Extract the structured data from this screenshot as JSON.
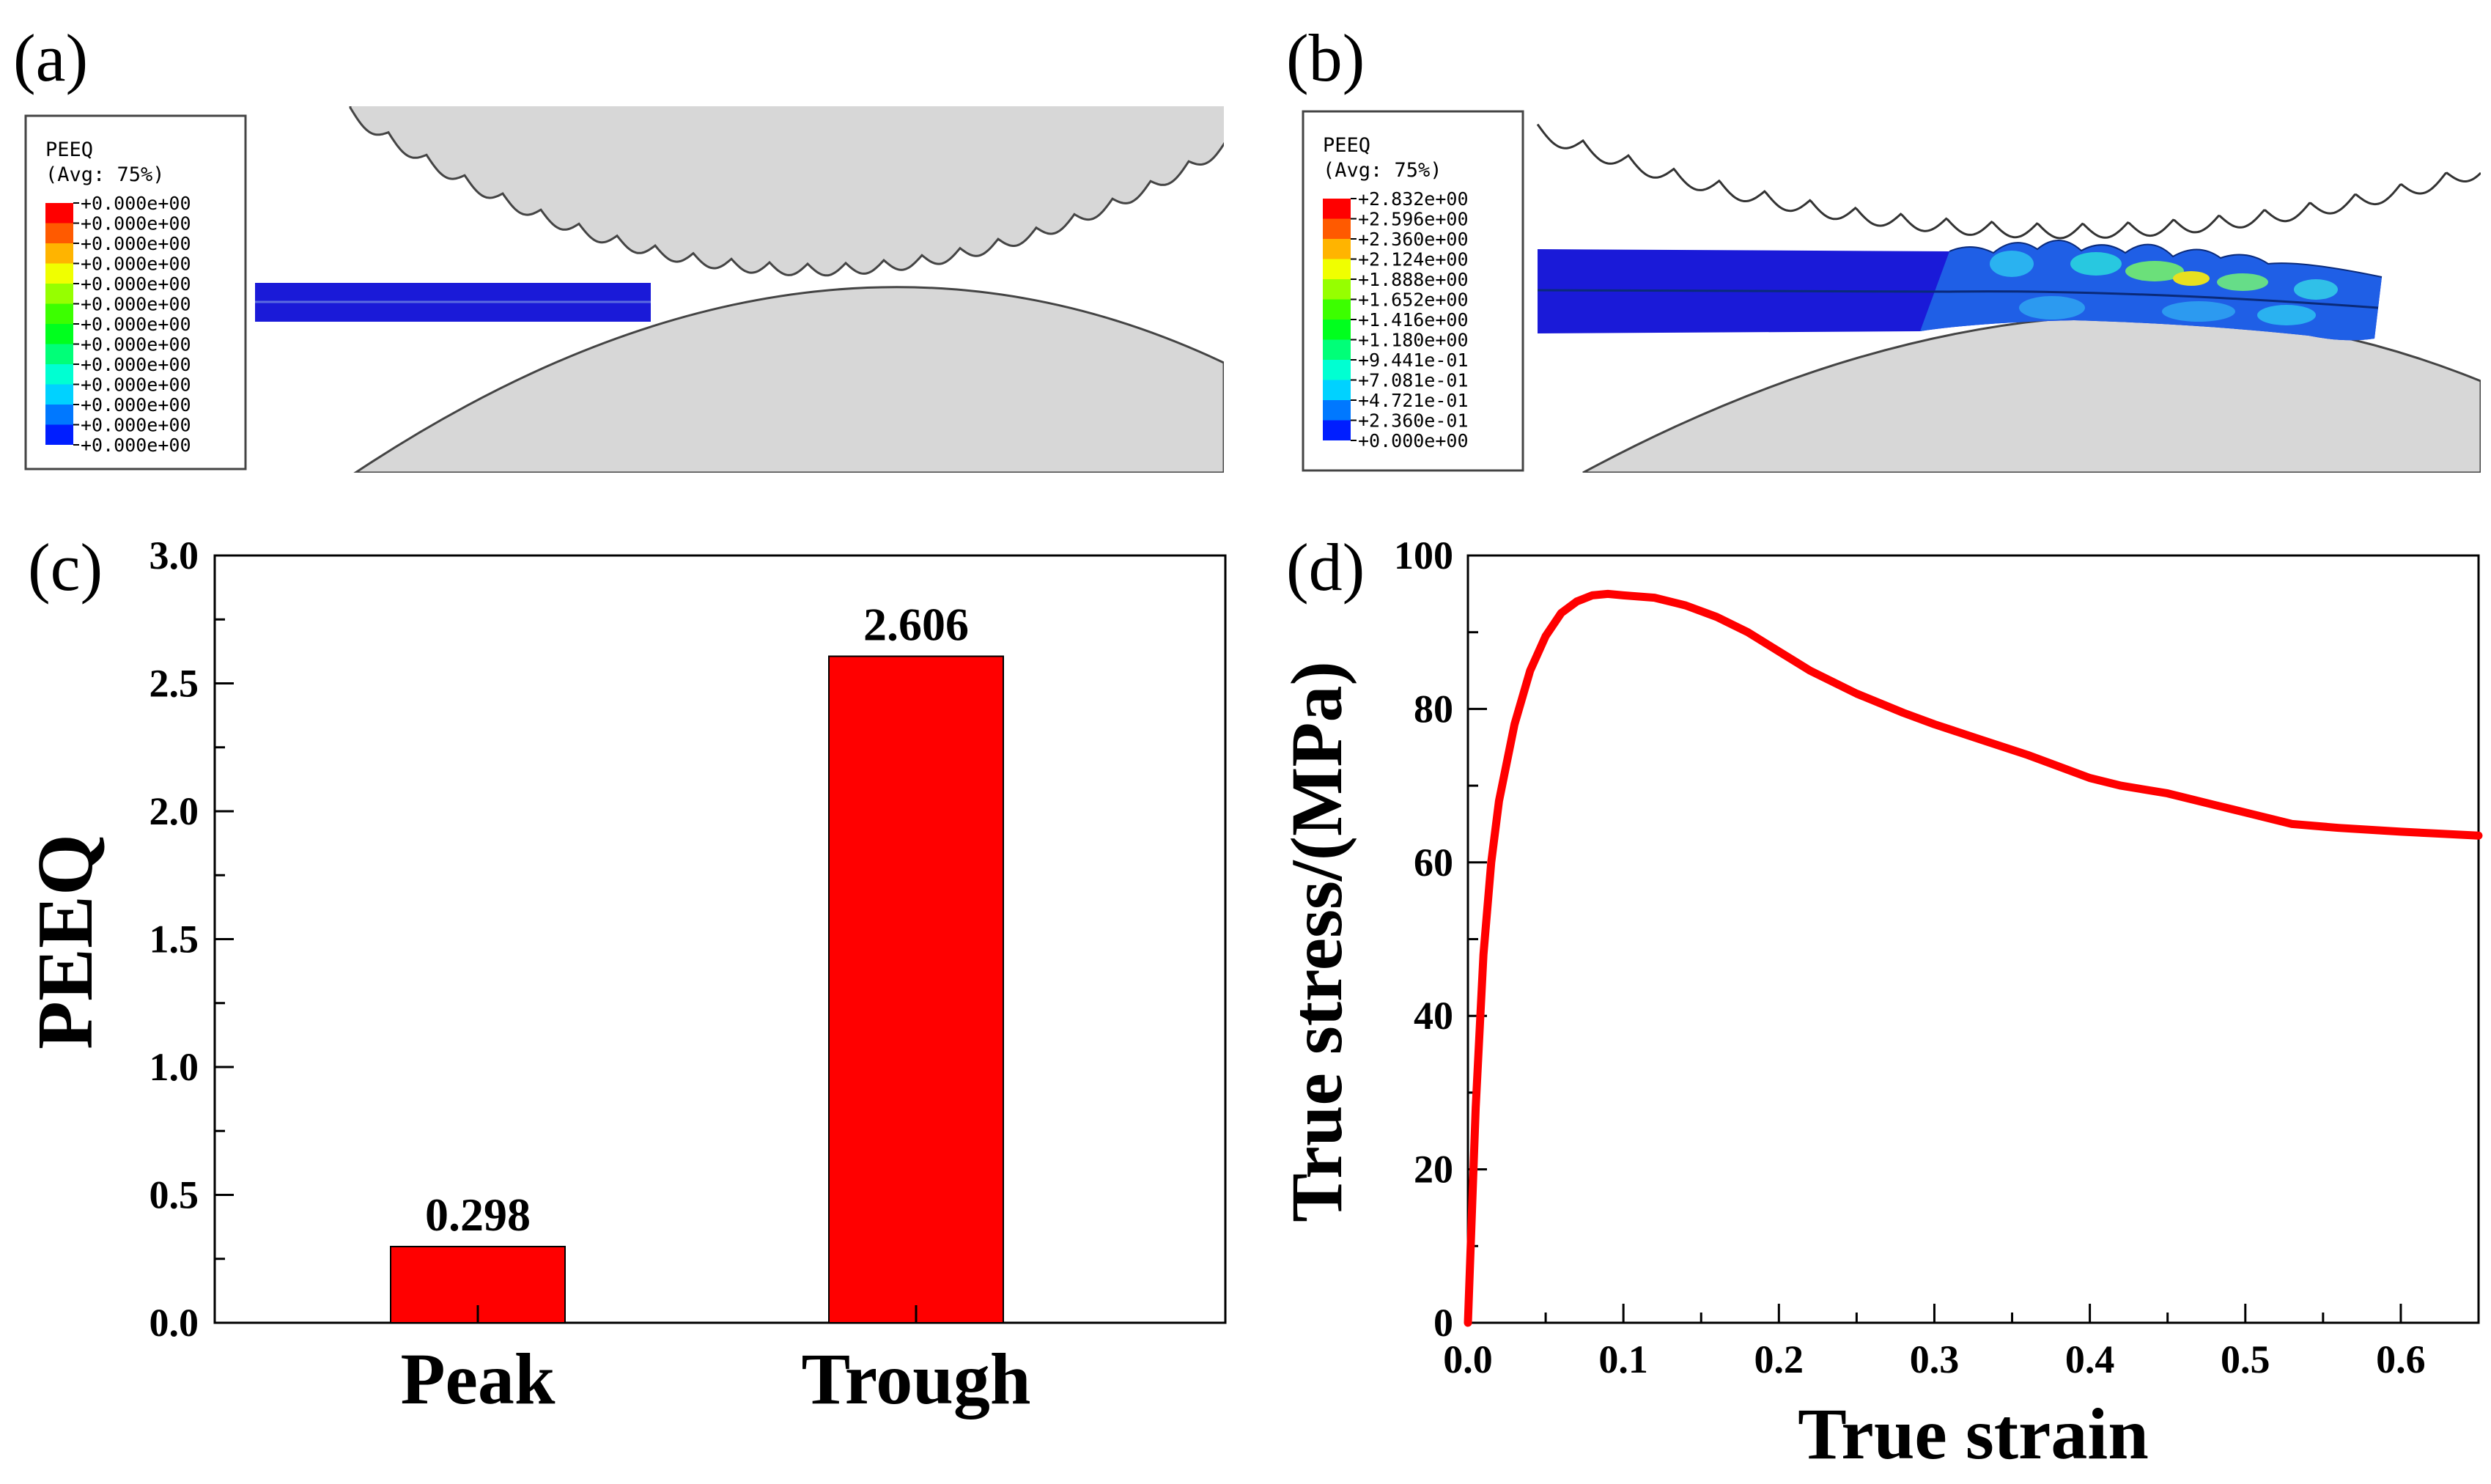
{
  "panels": {
    "a": {
      "label": "(a)",
      "legend": {
        "title": "PEEQ",
        "subtitle": "(Avg: 75%)",
        "values": [
          "+0.000e+00",
          "+0.000e+00",
          "+0.000e+00",
          "+0.000e+00",
          "+0.000e+00",
          "+0.000e+00",
          "+0.000e+00",
          "+0.000e+00",
          "+0.000e+00",
          "+0.000e+00",
          "+0.000e+00",
          "+0.000e+00",
          "+0.000e+00"
        ],
        "colors": [
          "#ff0000",
          "#ff5a00",
          "#ffb400",
          "#f0ff00",
          "#96ff00",
          "#3cff00",
          "#00ff1e",
          "#00ff78",
          "#00ffd2",
          "#00d2ff",
          "#0078ff",
          "#001eff"
        ]
      }
    },
    "b": {
      "label": "(b)",
      "legend": {
        "title": "PEEQ",
        "subtitle": "(Avg: 75%)",
        "values": [
          "+2.832e+00",
          "+2.596e+00",
          "+2.360e+00",
          "+2.124e+00",
          "+1.888e+00",
          "+1.652e+00",
          "+1.416e+00",
          "+1.180e+00",
          "+9.441e-01",
          "+7.081e-01",
          "+4.721e-01",
          "+2.360e-01",
          "+0.000e+00"
        ],
        "colors": [
          "#ff0000",
          "#ff5a00",
          "#ffb400",
          "#f0ff00",
          "#96ff00",
          "#3cff00",
          "#00ff1e",
          "#00ff78",
          "#00ffd2",
          "#00d2ff",
          "#0078ff",
          "#001eff"
        ]
      }
    },
    "c": {
      "label": "(c)"
    },
    "d": {
      "label": "(d)"
    }
  },
  "chart_data": [
    {
      "type": "bar",
      "categories": [
        "Peak",
        "Trough"
      ],
      "values": [
        0.298,
        2.606
      ],
      "data_labels": [
        "0.298",
        "2.606"
      ],
      "ylabel": "PEEQ",
      "ylim": [
        0,
        3.0
      ],
      "yticks": [
        "0.0",
        "0.5",
        "1.0",
        "1.5",
        "2.0",
        "2.5",
        "3.0"
      ],
      "bar_color": "#ff0000"
    },
    {
      "type": "line",
      "xlabel": "True strain",
      "ylabel": "True stress/(MPa)",
      "xlim": [
        0,
        0.65
      ],
      "ylim": [
        0,
        100
      ],
      "xticks": [
        "0.0",
        "0.1",
        "0.2",
        "0.3",
        "0.4",
        "0.5",
        "0.6"
      ],
      "yticks": [
        "0",
        "20",
        "40",
        "60",
        "80",
        "100"
      ],
      "line_color": "#ff0000",
      "x": [
        0.0,
        0.005,
        0.01,
        0.015,
        0.02,
        0.03,
        0.04,
        0.05,
        0.06,
        0.07,
        0.08,
        0.09,
        0.1,
        0.12,
        0.14,
        0.16,
        0.18,
        0.2,
        0.22,
        0.25,
        0.28,
        0.3,
        0.33,
        0.36,
        0.4,
        0.42,
        0.45,
        0.48,
        0.5,
        0.53,
        0.56,
        0.6,
        0.65
      ],
      "y": [
        0,
        28,
        48,
        60,
        68,
        78,
        85,
        89.5,
        92.5,
        94,
        94.8,
        95,
        94.8,
        94.5,
        93.5,
        92,
        90,
        87.5,
        85,
        82,
        79.5,
        78,
        76,
        74,
        71,
        70,
        69,
        67.5,
        66.5,
        65,
        64.5,
        64,
        63.5
      ]
    }
  ]
}
